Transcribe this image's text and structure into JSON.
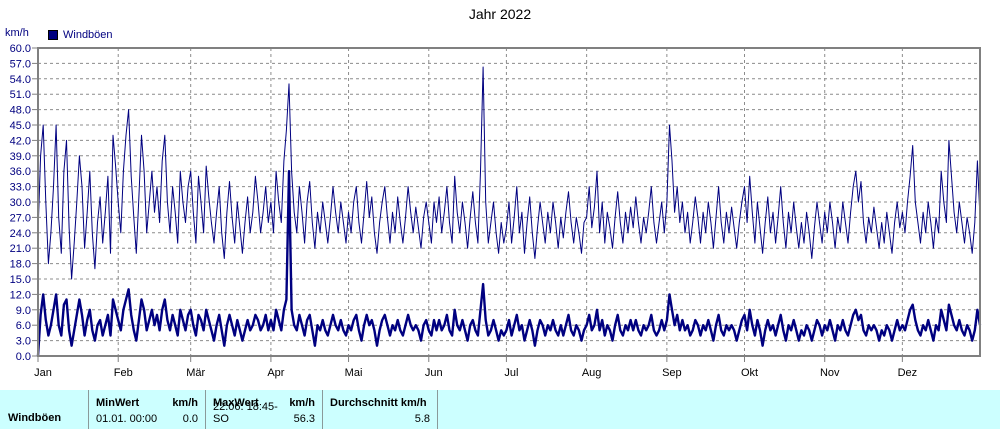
{
  "title": "Jahr 2022",
  "y_axis": {
    "unit": "km/h"
  },
  "legend": {
    "label": "Windböen",
    "swatch_color": "#000080"
  },
  "colors": {
    "line": "#000080",
    "grid": "#8c8c8c",
    "border": "#808080",
    "y_text": "#000080",
    "x_text": "#000000",
    "table_bg": "#CCFFFF",
    "table_separator": "#8a9a9a"
  },
  "chart_data": {
    "type": "line",
    "title": "Jahr 2022",
    "ylabel": "km/h",
    "xlabel": "",
    "ylim": [
      0,
      60
    ],
    "ytick_step": 3,
    "ytick_labels": [
      "0.0",
      "3.0",
      "6.0",
      "9.0",
      "12.0",
      "15.0",
      "18.0",
      "21.0",
      "24.0",
      "27.0",
      "30.0",
      "33.0",
      "36.0",
      "39.0",
      "42.0",
      "45.0",
      "48.0",
      "51.0",
      "54.0",
      "57.0",
      "60.0"
    ],
    "grid": true,
    "legend_position": "top-left",
    "x_unit": "day_of_year_2022",
    "months": [
      {
        "label": "Jan",
        "startDay": 0
      },
      {
        "label": "Feb",
        "startDay": 31
      },
      {
        "label": "Mär",
        "startDay": 59
      },
      {
        "label": "Apr",
        "startDay": 90
      },
      {
        "label": "Mai",
        "startDay": 120
      },
      {
        "label": "Jun",
        "startDay": 151
      },
      {
        "label": "Jul",
        "startDay": 181
      },
      {
        "label": "Aug",
        "startDay": 212
      },
      {
        "label": "Sep",
        "startDay": 243
      },
      {
        "label": "Okt",
        "startDay": 273
      },
      {
        "label": "Nov",
        "startDay": 304
      },
      {
        "label": "Dez",
        "startDay": 334
      }
    ],
    "series": [
      {
        "name": "Windböen (Tagesspitze, dünne Linie)",
        "style": "thin",
        "values": [
          24,
          39,
          45,
          30,
          18,
          24,
          33,
          45,
          27,
          20,
          36,
          42,
          25,
          15,
          22,
          30,
          39,
          33,
          21,
          28,
          36,
          24,
          17,
          26,
          31,
          22,
          28,
          35,
          20,
          43,
          37,
          30,
          24,
          36,
          43,
          48,
          35,
          27,
          20,
          31,
          43,
          36,
          24,
          30,
          36,
          28,
          33,
          26,
          38,
          43,
          30,
          24,
          33,
          28,
          22,
          36,
          30,
          26,
          33,
          36,
          28,
          22,
          35,
          30,
          24,
          37,
          31,
          26,
          22,
          28,
          33,
          24,
          19,
          28,
          34,
          27,
          22,
          30,
          25,
          20,
          26,
          31,
          24,
          28,
          35,
          30,
          24,
          28,
          33,
          26,
          30,
          24,
          36,
          30,
          26,
          38,
          44,
          53,
          36,
          28,
          24,
          33,
          28,
          22,
          30,
          34,
          26,
          21,
          28,
          24,
          30,
          26,
          22,
          27,
          33,
          28,
          24,
          30,
          26,
          22,
          28,
          24,
          30,
          33,
          26,
          22,
          28,
          34,
          27,
          31,
          24,
          20,
          26,
          30,
          33,
          27,
          22,
          28,
          24,
          31,
          26,
          22,
          27,
          33,
          28,
          24,
          29,
          25,
          21,
          27,
          30,
          26,
          22,
          30,
          26,
          31,
          24,
          28,
          33,
          26,
          22,
          35,
          28,
          24,
          30,
          26,
          21,
          27,
          32,
          26,
          22,
          36,
          56.3,
          30,
          22,
          26,
          30,
          24,
          20,
          26,
          22,
          25,
          30,
          22,
          27,
          33,
          24,
          28,
          20,
          26,
          31,
          24,
          19,
          25,
          30,
          26,
          22,
          28,
          24,
          30,
          26,
          21,
          27,
          23,
          28,
          32,
          26,
          22,
          27,
          24,
          20,
          26,
          27,
          33,
          25,
          29,
          36,
          24,
          30,
          22,
          28,
          25,
          21,
          27,
          32,
          26,
          22,
          28,
          24,
          29,
          25,
          31,
          26,
          22,
          27,
          24,
          28,
          33,
          26,
          22,
          26,
          30,
          24,
          30,
          45,
          38,
          28,
          33,
          26,
          30,
          24,
          28,
          22,
          26,
          31,
          27,
          22,
          28,
          24,
          30,
          26,
          21,
          27,
          33,
          26,
          22,
          28,
          24,
          29,
          25,
          21,
          26,
          30,
          33,
          26,
          35,
          28,
          22,
          30,
          25,
          20,
          26,
          31,
          24,
          28,
          22,
          27,
          33,
          26,
          21,
          28,
          24,
          30,
          25,
          21,
          26,
          22,
          28,
          24,
          19,
          25,
          30,
          26,
          22,
          28,
          24,
          30,
          26,
          21,
          27,
          24,
          30,
          26,
          22,
          28,
          33,
          36,
          30,
          34,
          26,
          22,
          27,
          24,
          29,
          25,
          21,
          26,
          22,
          28,
          24,
          20,
          26,
          30,
          25,
          28,
          24,
          30,
          35,
          41,
          30,
          26,
          22,
          28,
          24,
          30,
          26,
          21,
          27,
          24,
          36,
          30,
          26,
          42,
          35,
          28,
          24,
          30,
          26,
          22,
          27,
          24,
          20,
          26,
          38,
          27
        ]
      },
      {
        "name": "Windböen (Mittel, dicke Linie)",
        "style": "bold",
        "values": [
          0,
          8,
          12,
          7,
          4,
          6,
          9,
          12,
          6,
          4,
          10,
          11,
          5,
          2,
          5,
          8,
          11,
          8,
          4,
          7,
          9,
          5,
          3,
          6,
          7,
          4,
          6,
          8,
          4,
          11,
          9,
          7,
          5,
          9,
          11,
          13,
          8,
          5,
          3,
          7,
          11,
          9,
          5,
          7,
          9,
          6,
          8,
          5,
          9,
          11,
          7,
          5,
          8,
          6,
          4,
          9,
          7,
          5,
          8,
          9,
          6,
          4,
          8,
          7,
          5,
          9,
          7,
          5,
          3,
          6,
          8,
          5,
          2,
          6,
          8,
          6,
          4,
          7,
          5,
          3,
          5,
          7,
          5,
          6,
          8,
          7,
          5,
          6,
          8,
          5,
          7,
          5,
          9,
          7,
          5,
          9,
          11,
          36,
          9,
          6,
          5,
          8,
          6,
          4,
          7,
          8,
          5,
          2,
          6,
          5,
          7,
          5,
          4,
          6,
          8,
          6,
          5,
          7,
          5,
          4,
          6,
          5,
          7,
          8,
          5,
          3,
          6,
          8,
          6,
          7,
          5,
          2,
          5,
          7,
          8,
          6,
          4,
          6,
          5,
          7,
          5,
          4,
          6,
          8,
          6,
          5,
          6,
          5,
          3,
          6,
          7,
          5,
          4,
          7,
          5,
          7,
          5,
          6,
          8,
          5,
          4,
          9,
          6,
          5,
          7,
          5,
          3,
          6,
          7,
          5,
          4,
          9,
          14,
          7,
          4,
          5,
          7,
          5,
          3,
          5,
          4,
          5,
          7,
          4,
          6,
          8,
          5,
          6,
          3,
          5,
          7,
          5,
          2,
          5,
          7,
          6,
          4,
          6,
          5,
          7,
          5,
          4,
          6,
          4,
          6,
          8,
          5,
          4,
          6,
          5,
          3,
          5,
          6,
          8,
          5,
          6,
          9,
          5,
          7,
          4,
          6,
          5,
          3,
          6,
          8,
          5,
          4,
          6,
          5,
          7,
          5,
          7,
          5,
          4,
          6,
          5,
          6,
          8,
          5,
          4,
          5,
          7,
          5,
          7,
          12,
          9,
          6,
          8,
          5,
          7,
          5,
          6,
          4,
          5,
          7,
          6,
          4,
          6,
          5,
          7,
          5,
          3,
          6,
          8,
          5,
          4,
          6,
          5,
          6,
          5,
          3,
          5,
          7,
          8,
          5,
          9,
          6,
          4,
          7,
          5,
          2,
          5,
          7,
          5,
          6,
          4,
          6,
          8,
          5,
          3,
          6,
          5,
          7,
          5,
          3,
          5,
          4,
          6,
          5,
          3,
          5,
          7,
          6,
          4,
          6,
          5,
          7,
          5,
          3,
          6,
          5,
          7,
          5,
          4,
          6,
          8,
          9,
          7,
          8,
          5,
          4,
          6,
          5,
          6,
          5,
          3,
          5,
          4,
          6,
          5,
          3,
          5,
          7,
          5,
          6,
          5,
          7,
          9,
          10,
          7,
          5,
          4,
          6,
          5,
          7,
          5,
          3,
          6,
          5,
          9,
          7,
          5,
          10,
          8,
          6,
          5,
          7,
          5,
          4,
          6,
          5,
          3,
          5,
          9,
          6
        ]
      }
    ]
  },
  "summary_table": {
    "row_label": "Windböen",
    "min": {
      "header_left": "MinWert",
      "header_right": "km/h",
      "value_left": "01.01.  00:00",
      "value_right": "0.0"
    },
    "max": {
      "header_left": "MaxWert",
      "header_right": "km/h",
      "value_left": "22.06.  18:45-SO",
      "value_right": "56.3"
    },
    "avg": {
      "header_left": "Durchschnitt km/h",
      "value_right": "5.8"
    }
  }
}
